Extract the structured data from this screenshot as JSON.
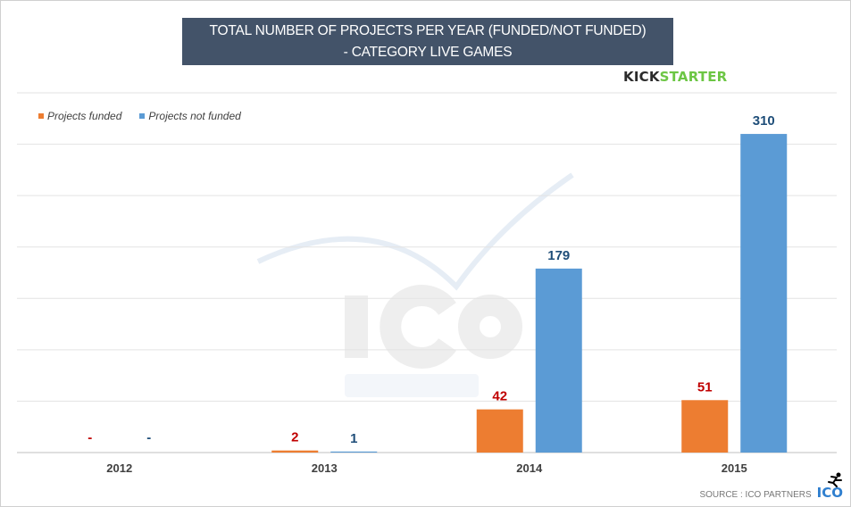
{
  "title_lines": [
    "TOTAL NUMBER OF PROJECTS PER YEAR (FUNDED/NOT FUNDED)",
    "- CATEGORY  LIVE GAMES"
  ],
  "logo": {
    "part1": "KICK",
    "part2": "STARTER"
  },
  "watermark": {
    "line1": "ICO",
    "line2": "PARTNERS"
  },
  "source": "SOURCE : ICO PARTNERS",
  "source_logo": "ICO",
  "chart_data": {
    "type": "bar",
    "title": "TOTAL NUMBER OF PROJECTS PER YEAR (FUNDED/NOT FUNDED) - CATEGORY  LIVE GAMES",
    "categories": [
      "2012",
      "2013",
      "2014",
      "2015"
    ],
    "series": [
      {
        "name": "Projects funded",
        "values": [
          0,
          2,
          42,
          51
        ],
        "labels": [
          "-",
          "2",
          "42",
          "51"
        ],
        "color": "#ed7d31",
        "label_color": "#c00000"
      },
      {
        "name": "Projects not funded",
        "values": [
          0,
          1,
          179,
          310
        ],
        "labels": [
          "-",
          "1",
          "179",
          "310"
        ],
        "color": "#5b9bd5",
        "label_color": "#1f4e79"
      }
    ],
    "ylim": [
      0,
      350
    ],
    "grid_step": 50,
    "grid": true,
    "y_axis_labels": false,
    "legend": "top-left"
  }
}
